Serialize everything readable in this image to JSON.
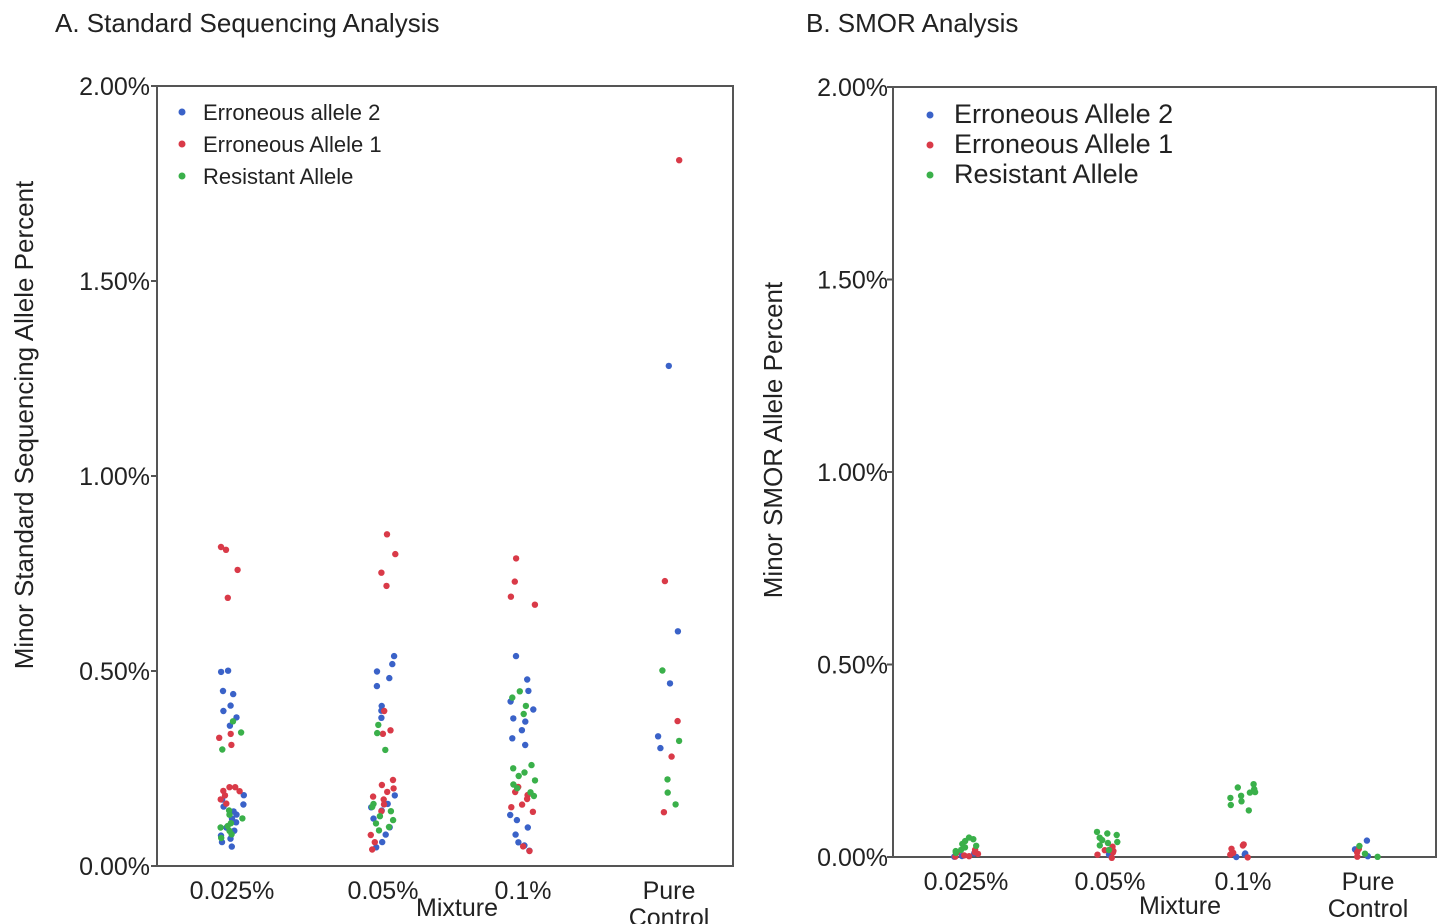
{
  "chart_data": [
    {
      "type": "scatter",
      "title": "A. Standard Sequencing Analysis",
      "ylabel": "Minor Standard Sequencing Allele Percent",
      "xlabel": "Mixture",
      "ylim": [
        0,
        2.0
      ],
      "yticks": [
        "0.00%",
        "0.50%",
        "1.00%",
        "1.50%",
        "2.00%"
      ],
      "ytick_values": [
        0,
        0.5,
        1.0,
        1.5,
        2.0
      ],
      "categories": [
        {
          "line1": "0.025%",
          "line2": ""
        },
        {
          "line1": "0.05%",
          "line2": ""
        },
        {
          "line1": "0.1%",
          "line2": ""
        },
        {
          "line1": "Pure",
          "line2": "Control"
        }
      ],
      "legend_position": "top-left",
      "series": [
        {
          "name": "Erroneous allele 2",
          "color": "#3a62c8",
          "points": [
            [
              0,
              0.05
            ],
            [
              0,
              0.06
            ],
            [
              0,
              0.07
            ],
            [
              0,
              0.08
            ],
            [
              0,
              0.09
            ],
            [
              0,
              0.1
            ],
            [
              0,
              0.11
            ],
            [
              0,
              0.12
            ],
            [
              0,
              0.13
            ],
            [
              0,
              0.14
            ],
            [
              0,
              0.15
            ],
            [
              0,
              0.16
            ],
            [
              0,
              0.17
            ],
            [
              0,
              0.18
            ],
            [
              0,
              0.36
            ],
            [
              0,
              0.38
            ],
            [
              0,
              0.4
            ],
            [
              0,
              0.41
            ],
            [
              0,
              0.44
            ],
            [
              0,
              0.45
            ],
            [
              0,
              0.5
            ],
            [
              0,
              0.5
            ],
            [
              1,
              0.05
            ],
            [
              1,
              0.06
            ],
            [
              1,
              0.08
            ],
            [
              1,
              0.1
            ],
            [
              1,
              0.12
            ],
            [
              1,
              0.14
            ],
            [
              1,
              0.15
            ],
            [
              1,
              0.16
            ],
            [
              1,
              0.18
            ],
            [
              1,
              0.38
            ],
            [
              1,
              0.4
            ],
            [
              1,
              0.41
            ],
            [
              1,
              0.46
            ],
            [
              1,
              0.48
            ],
            [
              1,
              0.5
            ],
            [
              1,
              0.52
            ],
            [
              1,
              0.54
            ],
            [
              2,
              0.04
            ],
            [
              2,
              0.05
            ],
            [
              2,
              0.06
            ],
            [
              2,
              0.08
            ],
            [
              2,
              0.1
            ],
            [
              2,
              0.12
            ],
            [
              2,
              0.13
            ],
            [
              2,
              0.31
            ],
            [
              2,
              0.33
            ],
            [
              2,
              0.35
            ],
            [
              2,
              0.37
            ],
            [
              2,
              0.38
            ],
            [
              2,
              0.4
            ],
            [
              2,
              0.42
            ],
            [
              2,
              0.45
            ],
            [
              2,
              0.48
            ],
            [
              2,
              0.54
            ],
            [
              3,
              0.3
            ],
            [
              3,
              0.33
            ],
            [
              3,
              0.47
            ],
            [
              3,
              0.6
            ],
            [
              3,
              1.28
            ]
          ]
        },
        {
          "name": "Erroneous Allele 1",
          "color": "#d93a48",
          "points": [
            [
              0,
              0.16
            ],
            [
              0,
              0.17
            ],
            [
              0,
              0.18
            ],
            [
              0,
              0.19
            ],
            [
              0,
              0.19
            ],
            [
              0,
              0.2
            ],
            [
              0,
              0.2
            ],
            [
              0,
              0.31
            ],
            [
              0,
              0.33
            ],
            [
              0,
              0.34
            ],
            [
              0,
              0.69
            ],
            [
              0,
              0.76
            ],
            [
              0,
              0.81
            ],
            [
              0,
              0.82
            ],
            [
              1,
              0.04
            ],
            [
              1,
              0.06
            ],
            [
              1,
              0.08
            ],
            [
              1,
              0.14
            ],
            [
              1,
              0.16
            ],
            [
              1,
              0.17
            ],
            [
              1,
              0.18
            ],
            [
              1,
              0.19
            ],
            [
              1,
              0.2
            ],
            [
              1,
              0.21
            ],
            [
              1,
              0.22
            ],
            [
              1,
              0.34
            ],
            [
              1,
              0.35
            ],
            [
              1,
              0.4
            ],
            [
              1,
              0.72
            ],
            [
              1,
              0.75
            ],
            [
              1,
              0.8
            ],
            [
              1,
              0.85
            ],
            [
              2,
              0.04
            ],
            [
              2,
              0.05
            ],
            [
              2,
              0.14
            ],
            [
              2,
              0.15
            ],
            [
              2,
              0.16
            ],
            [
              2,
              0.17
            ],
            [
              2,
              0.18
            ],
            [
              2,
              0.19
            ],
            [
              2,
              0.2
            ],
            [
              2,
              0.67
            ],
            [
              2,
              0.69
            ],
            [
              2,
              0.73
            ],
            [
              2,
              0.79
            ],
            [
              3,
              0.14
            ],
            [
              3,
              0.28
            ],
            [
              3,
              0.37
            ],
            [
              3,
              0.73
            ],
            [
              3,
              1.81
            ]
          ]
        },
        {
          "name": "Resistant Allele",
          "color": "#3ab04a",
          "points": [
            [
              0,
              0.07
            ],
            [
              0,
              0.08
            ],
            [
              0,
              0.09
            ],
            [
              0,
              0.1
            ],
            [
              0,
              0.1
            ],
            [
              0,
              0.11
            ],
            [
              0,
              0.12
            ],
            [
              0,
              0.13
            ],
            [
              0,
              0.14
            ],
            [
              0,
              0.3
            ],
            [
              0,
              0.34
            ],
            [
              0,
              0.37
            ],
            [
              1,
              0.09
            ],
            [
              1,
              0.1
            ],
            [
              1,
              0.11
            ],
            [
              1,
              0.12
            ],
            [
              1,
              0.13
            ],
            [
              1,
              0.14
            ],
            [
              1,
              0.15
            ],
            [
              1,
              0.16
            ],
            [
              1,
              0.3
            ],
            [
              1,
              0.34
            ],
            [
              1,
              0.36
            ],
            [
              2,
              0.18
            ],
            [
              2,
              0.19
            ],
            [
              2,
              0.2
            ],
            [
              2,
              0.21
            ],
            [
              2,
              0.22
            ],
            [
              2,
              0.23
            ],
            [
              2,
              0.24
            ],
            [
              2,
              0.25
            ],
            [
              2,
              0.26
            ],
            [
              2,
              0.39
            ],
            [
              2,
              0.41
            ],
            [
              2,
              0.43
            ],
            [
              2,
              0.45
            ],
            [
              3,
              0.16
            ],
            [
              3,
              0.19
            ],
            [
              3,
              0.22
            ],
            [
              3,
              0.32
            ],
            [
              3,
              0.5
            ]
          ]
        }
      ]
    },
    {
      "type": "scatter",
      "title": "B. SMOR Analysis",
      "ylabel": "Minor SMOR Allele Percent",
      "xlabel": "Mixture",
      "ylim": [
        0,
        2.0
      ],
      "yticks": [
        "0.00%",
        "0.50%",
        "1.00%",
        "1.50%",
        "2.00%"
      ],
      "ytick_values": [
        0,
        0.5,
        1.0,
        1.5,
        2.0
      ],
      "categories": [
        {
          "line1": "0.025%",
          "line2": ""
        },
        {
          "line1": "0.05%",
          "line2": ""
        },
        {
          "line1": "0.1%",
          "line2": ""
        },
        {
          "line1": "Pure",
          "line2": "Control"
        }
      ],
      "legend_position": "top-left",
      "series": [
        {
          "name": "Erroneous Allele 2",
          "color": "#3a62c8",
          "points": [
            [
              0,
              0.0
            ],
            [
              0,
              0.005
            ],
            [
              0,
              0.01
            ],
            [
              1,
              0.0
            ],
            [
              1,
              0.005
            ],
            [
              1,
              0.01
            ],
            [
              2,
              0.0
            ],
            [
              2,
              0.005
            ],
            [
              2,
              0.01
            ],
            [
              3,
              0.0
            ],
            [
              3,
              0.02
            ],
            [
              3,
              0.04
            ]
          ]
        },
        {
          "name": "Erroneous Allele 1",
          "color": "#d93a48",
          "points": [
            [
              0,
              0.0
            ],
            [
              0,
              0.0
            ],
            [
              0,
              0.005
            ],
            [
              0,
              0.01
            ],
            [
              0,
              0.01
            ],
            [
              0,
              0.015
            ],
            [
              0,
              0.02
            ],
            [
              1,
              0.0
            ],
            [
              1,
              0.005
            ],
            [
              1,
              0.01
            ],
            [
              1,
              0.015
            ],
            [
              1,
              0.02
            ],
            [
              1,
              0.025
            ],
            [
              2,
              0.0
            ],
            [
              2,
              0.005
            ],
            [
              2,
              0.01
            ],
            [
              2,
              0.02
            ],
            [
              2,
              0.03
            ],
            [
              2,
              0.035
            ],
            [
              3,
              0.0
            ],
            [
              3,
              0.01
            ],
            [
              3,
              0.02
            ]
          ]
        },
        {
          "name": "Resistant Allele",
          "color": "#3ab04a",
          "points": [
            [
              0,
              0.01
            ],
            [
              0,
              0.015
            ],
            [
              0,
              0.02
            ],
            [
              0,
              0.025
            ],
            [
              0,
              0.03
            ],
            [
              0,
              0.035
            ],
            [
              0,
              0.04
            ],
            [
              0,
              0.045
            ],
            [
              0,
              0.05
            ],
            [
              1,
              0.02
            ],
            [
              1,
              0.03
            ],
            [
              1,
              0.035
            ],
            [
              1,
              0.04
            ],
            [
              1,
              0.045
            ],
            [
              1,
              0.05
            ],
            [
              1,
              0.055
            ],
            [
              1,
              0.06
            ],
            [
              1,
              0.065
            ],
            [
              2,
              0.12
            ],
            [
              2,
              0.135
            ],
            [
              2,
              0.145
            ],
            [
              2,
              0.155
            ],
            [
              2,
              0.16
            ],
            [
              2,
              0.165
            ],
            [
              2,
              0.17
            ],
            [
              2,
              0.175
            ],
            [
              2,
              0.18
            ],
            [
              2,
              0.19
            ],
            [
              3,
              0.0
            ],
            [
              3,
              0.01
            ],
            [
              3,
              0.03
            ]
          ]
        }
      ]
    }
  ]
}
